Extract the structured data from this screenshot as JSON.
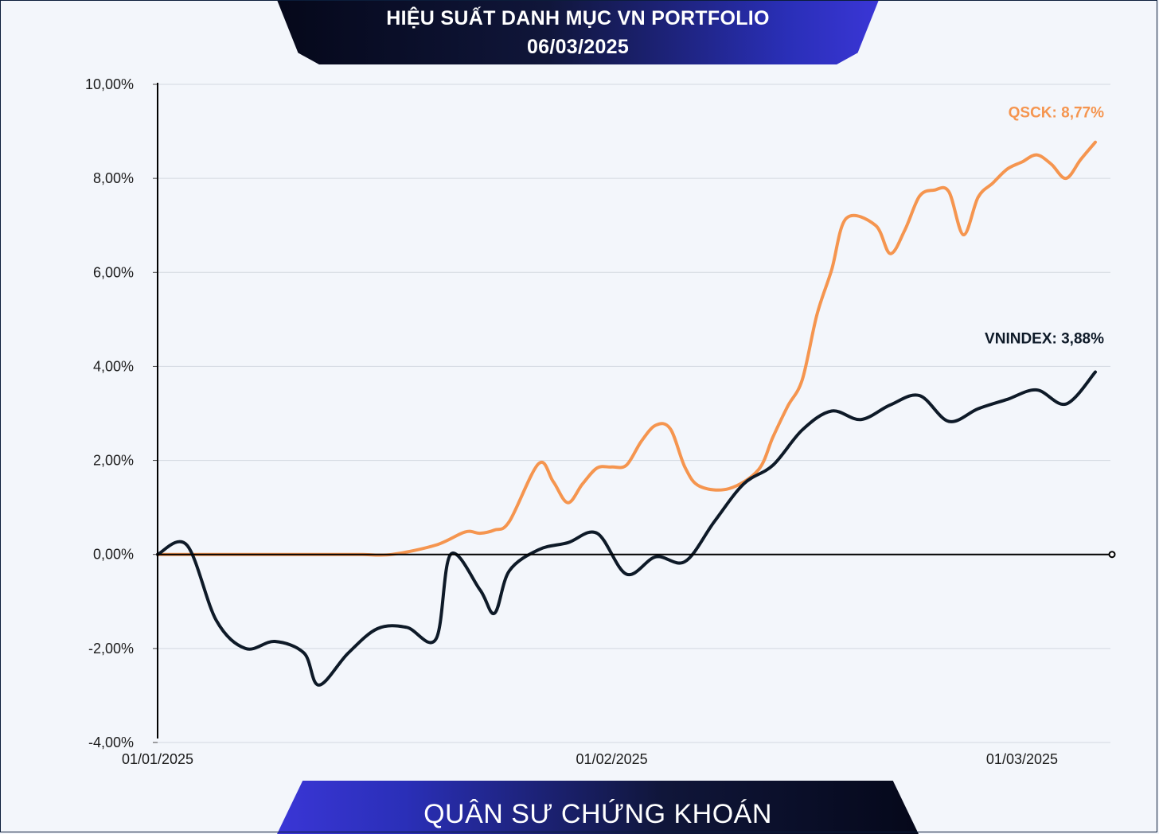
{
  "header": {
    "title_line1": "HIỆU SUẤT DANH MỤC VN PORTFOLIO",
    "title_line2": "06/03/2025"
  },
  "footer": {
    "brand": "QUÂN SƯ CHỨNG KHOÁN"
  },
  "colors": {
    "qsck": "#f5954f",
    "vnindex": "#0e1a28",
    "grid": "#d3d8e0",
    "axis": "#000000"
  },
  "chart_data": {
    "type": "line",
    "ylim": [
      -4,
      10
    ],
    "y_ticks": [
      10,
      8,
      6,
      4,
      2,
      0,
      -2,
      -4
    ],
    "y_tick_labels": [
      "10,00%",
      "8,00%",
      "6,00%",
      "4,00%",
      "2,00%",
      "0,00%",
      "-2,00%",
      "-4,00%"
    ],
    "x_range": [
      "2025-01-01",
      "2025-03-06"
    ],
    "x_ticks": [
      "2025-01-01",
      "2025-02-01",
      "2025-03-01"
    ],
    "x_tick_labels": [
      "01/01/2025",
      "01/02/2025",
      "01/03/2025"
    ],
    "grid": "horizontal",
    "series": [
      {
        "name": "QSCK",
        "end_label": "QSCK: 8,77%",
        "x": [
          "2025-01-01",
          "2025-01-03",
          "2025-01-08",
          "2025-01-11",
          "2025-01-14",
          "2025-01-15",
          "2025-01-17",
          "2025-01-20",
          "2025-01-22",
          "2025-01-23",
          "2025-01-24",
          "2025-01-25",
          "2025-01-27",
          "2025-01-28",
          "2025-01-29",
          "2025-01-30",
          "2025-01-31",
          "2025-02-01",
          "2025-02-02",
          "2025-02-03",
          "2025-02-04",
          "2025-02-05",
          "2025-02-06",
          "2025-02-07",
          "2025-02-09",
          "2025-02-11",
          "2025-02-12",
          "2025-02-13",
          "2025-02-14",
          "2025-02-15",
          "2025-02-16",
          "2025-02-17",
          "2025-02-19",
          "2025-02-20",
          "2025-02-21",
          "2025-02-22",
          "2025-02-23",
          "2025-02-24",
          "2025-02-25",
          "2025-02-26",
          "2025-02-27",
          "2025-02-28",
          "2025-03-01",
          "2025-03-02",
          "2025-03-03",
          "2025-03-04",
          "2025-03-05",
          "2025-03-06"
        ],
        "y": [
          0.0,
          0.0,
          0.0,
          0.0,
          0.0,
          0.0,
          0.0,
          0.2,
          0.48,
          0.45,
          0.52,
          0.7,
          1.93,
          1.55,
          1.1,
          1.5,
          1.84,
          1.86,
          1.9,
          2.4,
          2.75,
          2.67,
          1.85,
          1.45,
          1.4,
          1.8,
          2.5,
          3.15,
          3.72,
          5.1,
          6.05,
          7.15,
          7.0,
          6.4,
          6.9,
          7.62,
          7.75,
          7.72,
          6.8,
          7.6,
          7.9,
          8.2,
          8.35,
          8.5,
          8.3,
          8.0,
          8.4,
          8.77
        ]
      },
      {
        "name": "VNINDEX",
        "end_label": "VNINDEX: 3,88%",
        "x": [
          "2025-01-01",
          "2025-01-03",
          "2025-01-05",
          "2025-01-07",
          "2025-01-09",
          "2025-01-11",
          "2025-01-12",
          "2025-01-14",
          "2025-01-16",
          "2025-01-18",
          "2025-01-20",
          "2025-01-21",
          "2025-01-23",
          "2025-01-24",
          "2025-01-25",
          "2025-01-27",
          "2025-01-29",
          "2025-01-31",
          "2025-02-02",
          "2025-02-04",
          "2025-02-06",
          "2025-02-08",
          "2025-02-10",
          "2025-02-12",
          "2025-02-14",
          "2025-02-16",
          "2025-02-18",
          "2025-02-20",
          "2025-02-22",
          "2025-02-24",
          "2025-02-26",
          "2025-02-28",
          "2025-03-02",
          "2025-03-04",
          "2025-03-06"
        ],
        "y": [
          0.0,
          0.2,
          -1.4,
          -2.0,
          -1.85,
          -2.1,
          -2.78,
          -2.1,
          -1.58,
          -1.55,
          -1.8,
          0.0,
          -0.75,
          -1.25,
          -0.35,
          0.1,
          0.25,
          0.45,
          -0.42,
          -0.05,
          -0.15,
          0.7,
          1.5,
          1.9,
          2.65,
          3.05,
          2.87,
          3.18,
          3.38,
          2.83,
          3.1,
          3.3,
          3.5,
          3.2,
          3.88
        ]
      }
    ]
  }
}
